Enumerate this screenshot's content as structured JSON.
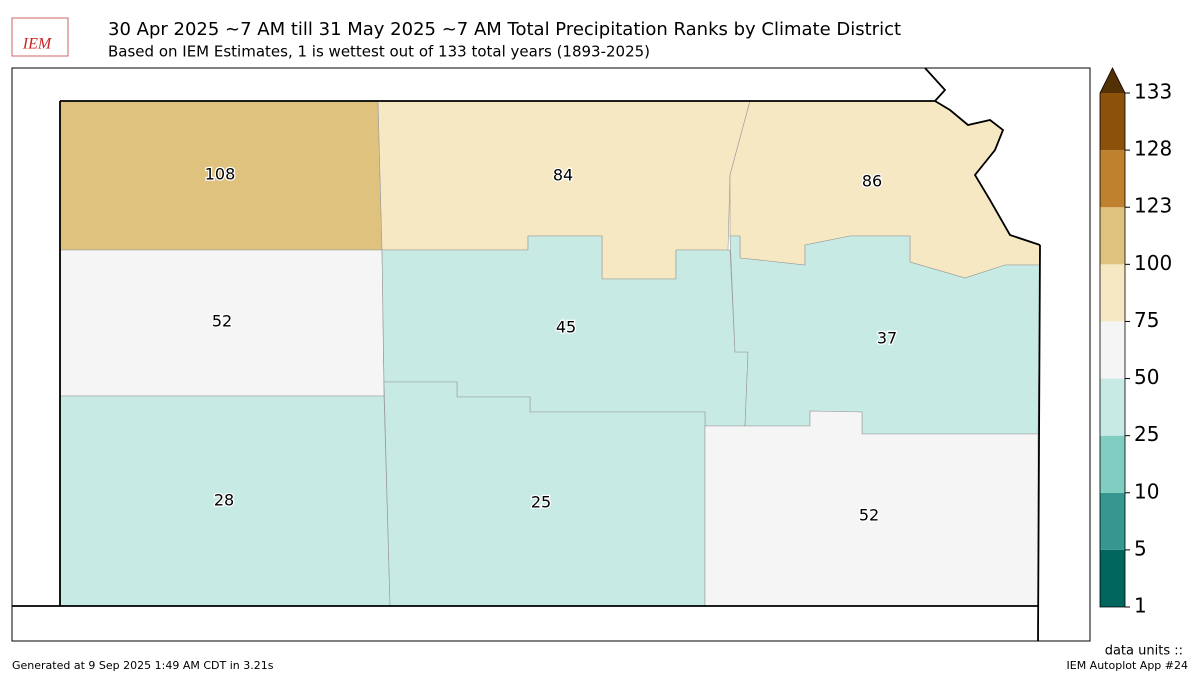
{
  "header": {
    "title": "30 Apr 2025 ~7 AM till 31 May 2025 ~7 AM Total Precipitation Ranks by Climate District",
    "subtitle": "Based on IEM Estimates, 1 is wettest out of 133 total years (1893-2025)",
    "logo": "IEM"
  },
  "districts": [
    {
      "rank": 108
    },
    {
      "rank": 84
    },
    {
      "rank": 86
    },
    {
      "rank": 52
    },
    {
      "rank": 45
    },
    {
      "rank": 37
    },
    {
      "rank": 28
    },
    {
      "rank": 25
    },
    {
      "rank": 52
    }
  ],
  "colorbar": {
    "ticks": [
      1,
      5,
      10,
      25,
      50,
      75,
      100,
      123,
      128,
      133
    ],
    "colors": [
      "#01665e",
      "#35978f",
      "#80cdc1",
      "#c7eae5",
      "#f5f5f5",
      "#f6e8c3",
      "#dfc27d",
      "#bf812d",
      "#8c510a"
    ],
    "extend_color": "#543005"
  },
  "footer": {
    "units": "data units ::",
    "generated": "Generated at 9 Sep 2025 1:49 AM CDT in 3.21s",
    "app": "IEM Autoplot App #24"
  }
}
